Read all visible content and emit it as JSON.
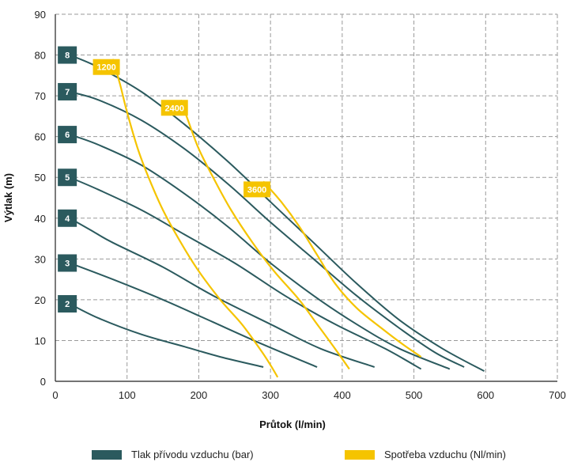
{
  "chart_data": {
    "type": "line",
    "xlabel": "Průtok (l/min)",
    "ylabel": "Výtlak (m)",
    "xlim": [
      0,
      700
    ],
    "ylim": [
      0,
      90
    ],
    "x_ticks": [
      "0",
      "100",
      "200",
      "300",
      "400",
      "500",
      "600",
      "700"
    ],
    "y_ticks": [
      "0",
      "10",
      "20",
      "30",
      "40",
      "50",
      "60",
      "70",
      "80",
      "90"
    ],
    "grid": "dashed",
    "colors": {
      "pressure": "#2b5a5e",
      "consumption": "#f5c400",
      "label_text": "#ffffff"
    },
    "pressure_series": [
      {
        "label": "2",
        "points": [
          [
            20,
            19
          ],
          [
            60,
            15.5
          ],
          [
            120,
            11.5
          ],
          [
            180,
            8.5
          ],
          [
            230,
            6
          ],
          [
            290,
            3.5
          ]
        ]
      },
      {
        "label": "3",
        "points": [
          [
            20,
            29
          ],
          [
            80,
            25
          ],
          [
            150,
            20
          ],
          [
            220,
            14.5
          ],
          [
            290,
            9
          ],
          [
            365,
            3.5
          ]
        ]
      },
      {
        "label": "4",
        "points": [
          [
            20,
            40
          ],
          [
            50,
            37
          ],
          [
            80,
            34
          ],
          [
            150,
            28
          ],
          [
            220,
            21
          ],
          [
            300,
            14
          ],
          [
            370,
            8
          ],
          [
            445,
            3.5
          ]
        ]
      },
      {
        "label": "5",
        "points": [
          [
            20,
            50
          ],
          [
            60,
            47
          ],
          [
            120,
            42
          ],
          [
            180,
            36
          ],
          [
            250,
            29
          ],
          [
            320,
            21
          ],
          [
            390,
            14
          ],
          [
            460,
            8
          ],
          [
            510,
            3
          ]
        ]
      },
      {
        "label": "6",
        "points": [
          [
            20,
            60.5
          ],
          [
            60,
            58
          ],
          [
            120,
            53
          ],
          [
            180,
            46
          ],
          [
            240,
            38
          ],
          [
            300,
            29
          ],
          [
            360,
            21
          ],
          [
            420,
            14
          ],
          [
            480,
            8
          ],
          [
            550,
            3
          ]
        ]
      },
      {
        "label": "7",
        "points": [
          [
            20,
            71
          ],
          [
            60,
            69
          ],
          [
            120,
            64
          ],
          [
            180,
            57
          ],
          [
            240,
            48.5
          ],
          [
            300,
            39
          ],
          [
            360,
            30
          ],
          [
            420,
            21
          ],
          [
            480,
            13
          ],
          [
            530,
            7
          ],
          [
            570,
            3.5
          ]
        ]
      },
      {
        "label": "8",
        "points": [
          [
            20,
            80
          ],
          [
            60,
            77
          ],
          [
            120,
            71
          ],
          [
            180,
            63
          ],
          [
            240,
            54
          ],
          [
            300,
            44
          ],
          [
            360,
            34
          ],
          [
            420,
            24
          ],
          [
            480,
            15
          ],
          [
            540,
            8
          ],
          [
            598,
            2.5
          ]
        ]
      }
    ],
    "consumption_series": [
      {
        "label": "1200",
        "points": [
          [
            80,
            79
          ],
          [
            90,
            73
          ],
          [
            100,
            66
          ],
          [
            115,
            57
          ],
          [
            130,
            50
          ],
          [
            150,
            42
          ],
          [
            175,
            34
          ],
          [
            200,
            27
          ],
          [
            230,
            20
          ],
          [
            260,
            14
          ],
          [
            285,
            8
          ],
          [
            300,
            4
          ],
          [
            310,
            1
          ]
        ]
      },
      {
        "label": "2400",
        "points": [
          [
            175,
            69
          ],
          [
            185,
            64
          ],
          [
            200,
            57
          ],
          [
            220,
            50
          ],
          [
            245,
            42
          ],
          [
            275,
            34
          ],
          [
            305,
            27
          ],
          [
            340,
            20
          ],
          [
            365,
            14
          ],
          [
            390,
            8
          ],
          [
            410,
            3
          ]
        ]
      },
      {
        "label": "3600",
        "points": [
          [
            290,
            49
          ],
          [
            315,
            44
          ],
          [
            340,
            38
          ],
          [
            365,
            31
          ],
          [
            390,
            24
          ],
          [
            420,
            18
          ],
          [
            455,
            13
          ],
          [
            485,
            9
          ],
          [
            510,
            6
          ]
        ]
      }
    ],
    "legend": [
      {
        "label": "Tlak přívodu vzduchu (bar)",
        "key": "pressure"
      },
      {
        "label": "Spotřeba vzduchu (Nl/min)",
        "key": "consumption"
      }
    ]
  }
}
